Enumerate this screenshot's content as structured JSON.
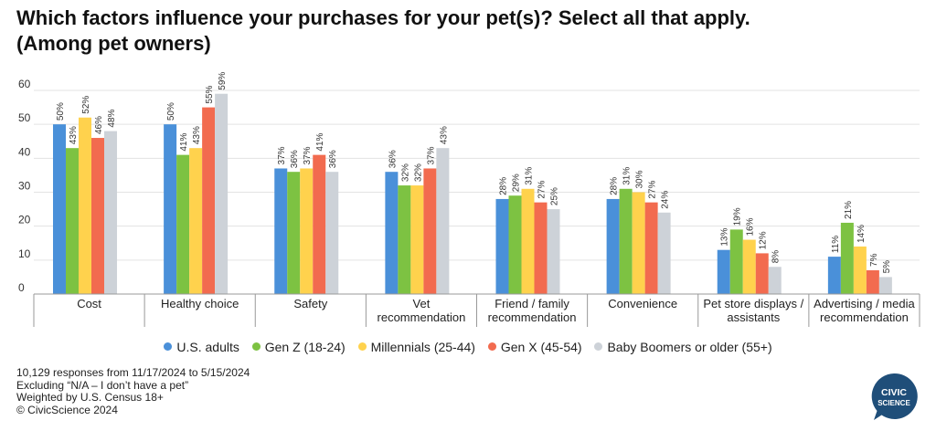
{
  "title_lines": [
    "Which factors influence your purchases for your pet(s)? Select all that apply.",
    "(Among pet owners)"
  ],
  "legend": [
    {
      "label": "U.S. adults",
      "color": "#4A90D9"
    },
    {
      "label": "Gen Z (18-24)",
      "color": "#7DC242"
    },
    {
      "label": "Millennials (25-44)",
      "color": "#FFD24D"
    },
    {
      "label": "Gen X (45-54)",
      "color": "#F26B4F"
    },
    {
      "label": "Baby Boomers or older (55+)",
      "color": "#CDD2D8"
    }
  ],
  "chart_data": {
    "type": "bar",
    "title": "Which factors influence your purchases for your pet(s)? Select all that apply. (Among pet owners)",
    "xlabel": "",
    "ylabel": "",
    "ylim": [
      0,
      60
    ],
    "yticks": [
      0,
      10,
      20,
      30,
      40,
      50,
      60
    ],
    "grid": true,
    "legend_position": "bottom",
    "value_suffix": "%",
    "categories": [
      [
        "Cost"
      ],
      [
        "Healthy choice"
      ],
      [
        "Safety"
      ],
      [
        "Vet",
        "recommendation"
      ],
      [
        "Friend / family",
        "recommendation"
      ],
      [
        "Convenience"
      ],
      [
        "Pet store displays /",
        "assistants"
      ],
      [
        "Advertising / media",
        "recommendation"
      ]
    ],
    "series": [
      {
        "name": "U.S. adults",
        "color": "#4A90D9",
        "values": [
          50,
          50,
          37,
          36,
          28,
          28,
          13,
          11
        ]
      },
      {
        "name": "Gen Z (18-24)",
        "color": "#7DC242",
        "values": [
          43,
          41,
          36,
          32,
          29,
          31,
          19,
          21
        ]
      },
      {
        "name": "Millennials (25-44)",
        "color": "#FFD24D",
        "values": [
          52,
          43,
          37,
          32,
          31,
          30,
          16,
          14
        ]
      },
      {
        "name": "Gen X (45-54)",
        "color": "#F26B4F",
        "values": [
          46,
          55,
          41,
          37,
          27,
          27,
          12,
          7
        ]
      },
      {
        "name": "Baby Boomers or older (55+)",
        "color": "#CDD2D8",
        "values": [
          48,
          59,
          36,
          43,
          25,
          24,
          8,
          5
        ]
      }
    ]
  },
  "footnotes": [
    "10,129 responses  from 11/17/2024 to 5/15/2024",
    "Excluding “N/A – I don’t have a pet”",
    "Weighted by U.S. Census 18+",
    "© CivicScience 2024"
  ],
  "logo": {
    "line1": "CIVIC",
    "line2": "SCIENCE",
    "color": "#1F4E79"
  }
}
